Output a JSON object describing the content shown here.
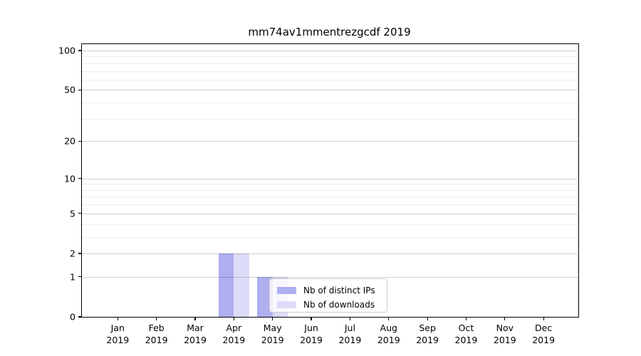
{
  "title": "mm74av1mmentrezgcdf 2019",
  "chart_data": {
    "type": "bar",
    "title": "mm74av1mmentrezgcdf 2019",
    "y_scale": "log10(value+1)",
    "grid": "on",
    "legend_position": "lower center, inside plot",
    "categories": [
      "Jan",
      "Feb",
      "Mar",
      "Apr",
      "May",
      "Jun",
      "Jul",
      "Aug",
      "Sep",
      "Oct",
      "Nov",
      "Dec"
    ],
    "x_year_label": "2019",
    "series": [
      {
        "name": "Nb of distinct IPs",
        "color": "#aeaef0",
        "values": [
          0,
          0,
          0,
          2,
          1,
          0,
          0,
          0,
          0,
          0,
          0,
          0
        ]
      },
      {
        "name": "Nb of downloads",
        "color": "#dcdcf8",
        "values": [
          0,
          0,
          0,
          2,
          1,
          0,
          0,
          0,
          0,
          0,
          0,
          0
        ]
      }
    ],
    "y_major_ticks": [
      0,
      1,
      2,
      5,
      10,
      20,
      50,
      100
    ],
    "y_minor_gridlines": [
      3,
      4,
      6,
      7,
      8,
      9,
      30,
      40,
      60,
      70,
      80,
      90
    ],
    "ylim": [
      0,
      112
    ],
    "colors": {
      "grid_major": "rgba(0,0,0,0.18)",
      "grid_minor": "rgba(0,0,0,0.07)",
      "axis": "#000000",
      "legend_border": "#cccccc"
    }
  }
}
